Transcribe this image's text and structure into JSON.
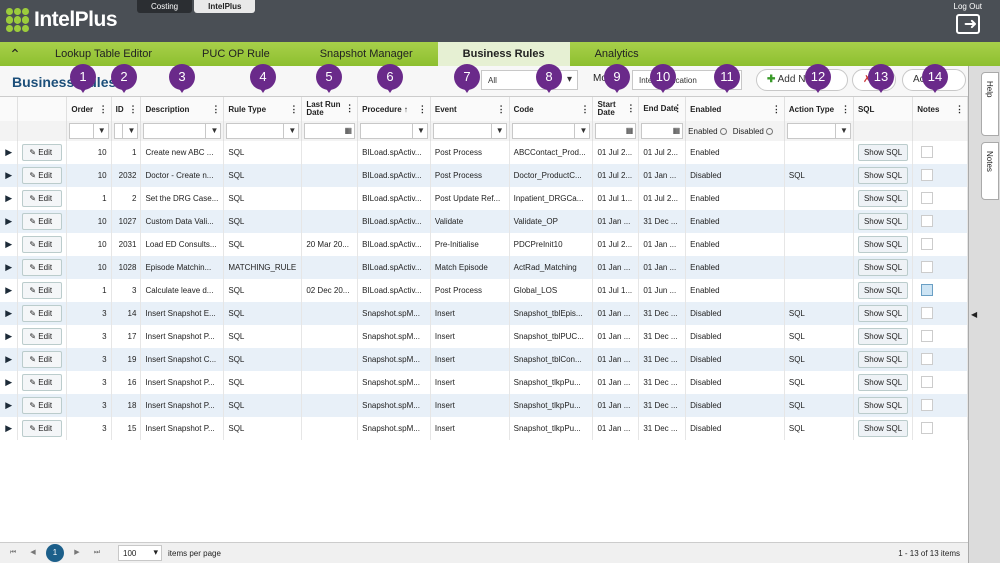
{
  "app": {
    "logo": "IntelPlus",
    "tabs": [
      "Costing",
      "IntelPlus"
    ],
    "active_tab": "IntelPlus",
    "logout": "Log Out"
  },
  "nav": {
    "items": [
      "Lookup Table Editor",
      "PUC OP Rule",
      "Snapshot Manager",
      "Business Rules",
      "Analytics"
    ],
    "active": "Business Rules"
  },
  "toolbar": {
    "title": "Business Rules",
    "filter_select": "All",
    "mode_label": "Mo",
    "mode_select": "IntelliApplication",
    "add_label": "Add N",
    "actions_label": "Ac"
  },
  "markers": [
    "1",
    "2",
    "3",
    "4",
    "5",
    "6",
    "7",
    "8",
    "9",
    "10",
    "11",
    "12",
    "13",
    "14"
  ],
  "columns": [
    {
      "label": "Order"
    },
    {
      "label": "ID"
    },
    {
      "label": "Description"
    },
    {
      "label": "Rule Type"
    },
    {
      "label": "Last Run Date"
    },
    {
      "label": "Procedure ↑"
    },
    {
      "label": "Event"
    },
    {
      "label": "Code"
    },
    {
      "label": "Start Date"
    },
    {
      "label": "End Date"
    },
    {
      "label": "Enabled"
    },
    {
      "label": "Action Type"
    },
    {
      "label": "SQL"
    },
    {
      "label": "Notes"
    }
  ],
  "filters": {
    "enabled_opt1": "Enabled",
    "enabled_opt2": "Disabled"
  },
  "edit_label": "Edit",
  "sql_label": "Show SQL",
  "rows": [
    {
      "order": "10",
      "id": "1",
      "desc": "Create new ABC ...",
      "type": "SQL",
      "lastrun": "",
      "proc": "BILoad.spActiv...",
      "event": "Post Process",
      "code": "ABCContact_Prod...",
      "start": "01 Jul 2...",
      "end": "01 Jul 2...",
      "enabled": "Enabled",
      "action": "",
      "note": false
    },
    {
      "order": "10",
      "id": "2032",
      "desc": "Doctor - Create n...",
      "type": "SQL",
      "lastrun": "",
      "proc": "BILoad.spActiv...",
      "event": "Post Process",
      "code": "Doctor_ProductC...",
      "start": "01 Jul 2...",
      "end": "01 Jan ...",
      "enabled": "Disabled",
      "action": "SQL",
      "note": false
    },
    {
      "order": "1",
      "id": "2",
      "desc": "Set the DRG Case...",
      "type": "SQL",
      "lastrun": "",
      "proc": "BILoad.spActiv...",
      "event": "Post Update Ref...",
      "code": "Inpatient_DRGCa...",
      "start": "01 Jul 1...",
      "end": "01 Jul 2...",
      "enabled": "Enabled",
      "action": "",
      "note": false
    },
    {
      "order": "10",
      "id": "1027",
      "desc": "Custom Data Vali...",
      "type": "SQL",
      "lastrun": "",
      "proc": "BILoad.spActiv...",
      "event": "Validate",
      "code": "Validate_OP",
      "start": "01 Jan ...",
      "end": "31 Dec ...",
      "enabled": "Enabled",
      "action": "",
      "note": false
    },
    {
      "order": "10",
      "id": "2031",
      "desc": "Load ED Consults...",
      "type": "SQL",
      "lastrun": "20 Mar 20...",
      "proc": "BILoad.spActiv...",
      "event": "Pre-Initialise",
      "code": "PDCPreInit10",
      "start": "01 Jul 2...",
      "end": "01 Jan ...",
      "enabled": "Enabled",
      "action": "",
      "note": false
    },
    {
      "order": "10",
      "id": "1028",
      "desc": "Episode Matchin...",
      "type": "MATCHING_RULE",
      "lastrun": "",
      "proc": "BILoad.spActiv...",
      "event": "Match Episode",
      "code": "ActRad_Matching",
      "start": "01 Jan ...",
      "end": "01 Jan ...",
      "enabled": "Enabled",
      "action": "",
      "note": false
    },
    {
      "order": "1",
      "id": "3",
      "desc": "Calculate leave d...",
      "type": "SQL",
      "lastrun": "02 Dec 20...",
      "proc": "BILoad.spActiv...",
      "event": "Post Process",
      "code": "Global_LOS",
      "start": "01 Jul 1...",
      "end": "01 Jun ...",
      "enabled": "Enabled",
      "action": "",
      "note": true
    },
    {
      "order": "3",
      "id": "14",
      "desc": "Insert Snapshot E...",
      "type": "SQL",
      "lastrun": "",
      "proc": "Snapshot.spM...",
      "event": "Insert",
      "code": "Snapshot_tblEpis...",
      "start": "01 Jan ...",
      "end": "31 Dec ...",
      "enabled": "Disabled",
      "action": "SQL",
      "note": false
    },
    {
      "order": "3",
      "id": "17",
      "desc": "Insert Snapshot P...",
      "type": "SQL",
      "lastrun": "",
      "proc": "Snapshot.spM...",
      "event": "Insert",
      "code": "Snapshot_tblPUC...",
      "start": "01 Jan ...",
      "end": "31 Dec ...",
      "enabled": "Disabled",
      "action": "SQL",
      "note": false
    },
    {
      "order": "3",
      "id": "19",
      "desc": "Insert Snapshot C...",
      "type": "SQL",
      "lastrun": "",
      "proc": "Snapshot.spM...",
      "event": "Insert",
      "code": "Snapshot_tblCon...",
      "start": "01 Jan ...",
      "end": "31 Dec ...",
      "enabled": "Disabled",
      "action": "SQL",
      "note": false
    },
    {
      "order": "3",
      "id": "16",
      "desc": "Insert Snapshot P...",
      "type": "SQL",
      "lastrun": "",
      "proc": "Snapshot.spM...",
      "event": "Insert",
      "code": "Snapshot_tlkpPu...",
      "start": "01 Jan ...",
      "end": "31 Dec ...",
      "enabled": "Disabled",
      "action": "SQL",
      "note": false
    },
    {
      "order": "3",
      "id": "18",
      "desc": "Insert Snapshot P...",
      "type": "SQL",
      "lastrun": "",
      "proc": "Snapshot.spM...",
      "event": "Insert",
      "code": "Snapshot_tlkpPu...",
      "start": "01 Jan ...",
      "end": "31 Dec ...",
      "enabled": "Disabled",
      "action": "SQL",
      "note": false
    },
    {
      "order": "3",
      "id": "15",
      "desc": "Insert Snapshot P...",
      "type": "SQL",
      "lastrun": "",
      "proc": "Snapshot.spM...",
      "event": "Insert",
      "code": "Snapshot_tlkpPu...",
      "start": "01 Jan ...",
      "end": "31 Dec ...",
      "enabled": "Disabled",
      "action": "SQL",
      "note": false
    }
  ],
  "pager": {
    "current": "1",
    "page_size": "100",
    "per_page_label": "items per page",
    "info": "1 - 13 of 13 items"
  },
  "side": {
    "help": "Help",
    "notes": "Notes"
  },
  "colors": {
    "nav_green": "#9ccc3c",
    "marker_purple": "#6a2a8a",
    "title_blue": "#1c4f7a"
  }
}
